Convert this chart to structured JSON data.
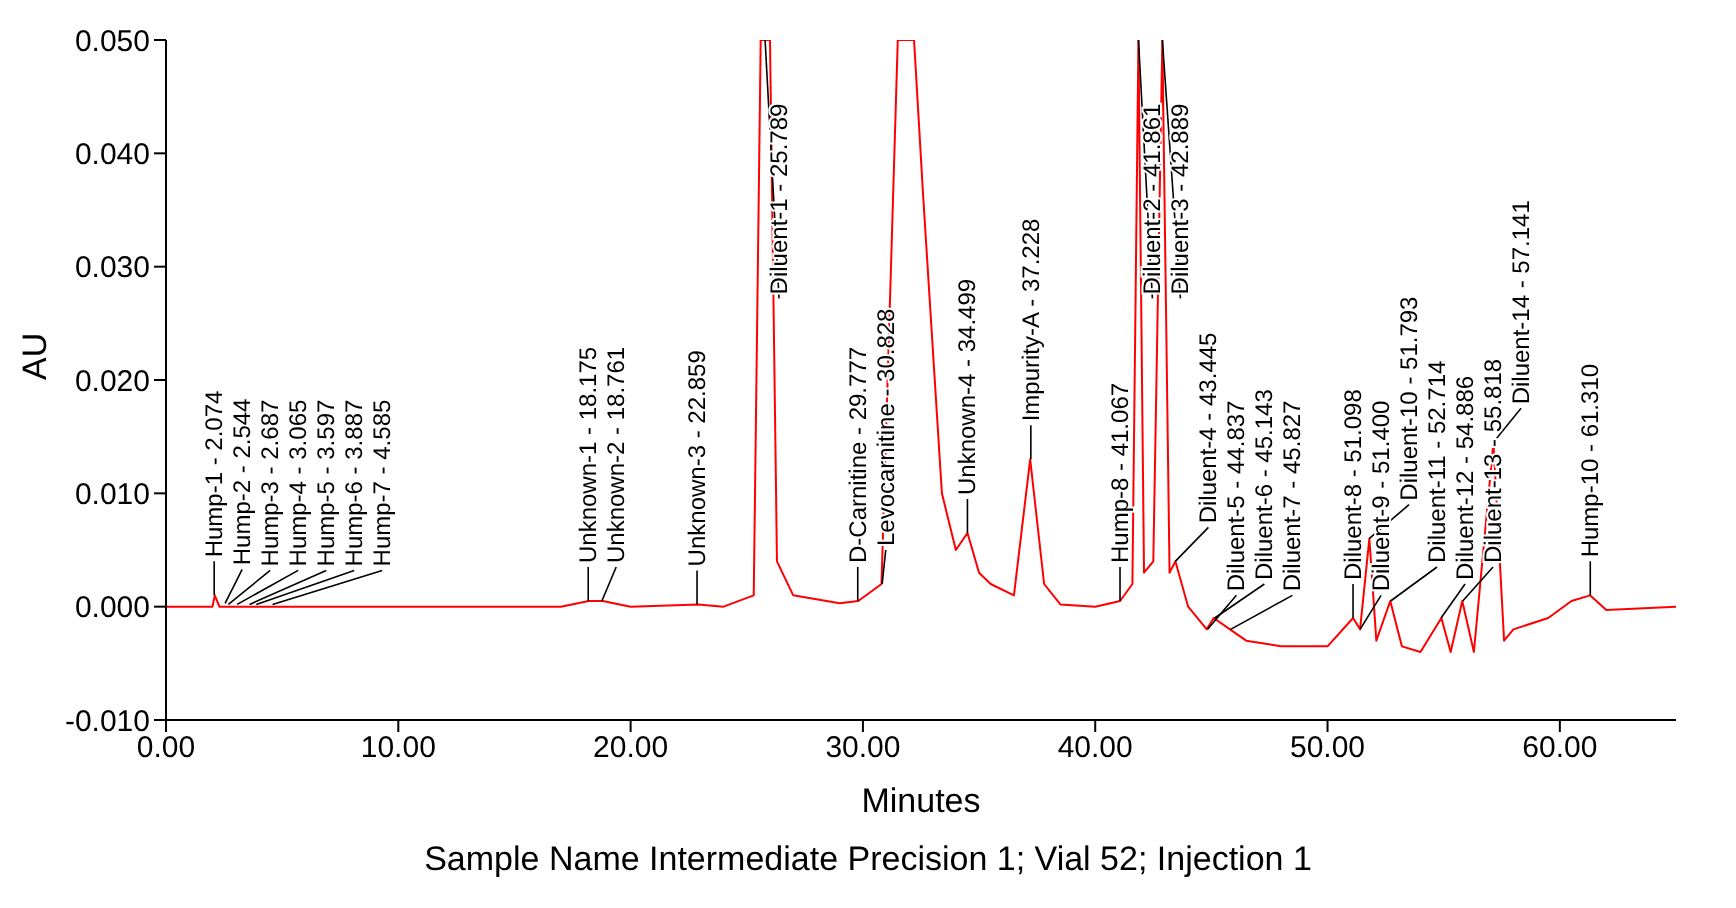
{
  "chart_data": {
    "type": "line",
    "xlabel": "Minutes",
    "ylabel": "AU",
    "xlim": [
      0,
      65
    ],
    "xticks": [
      {
        "value": 0,
        "label": "0.00"
      },
      {
        "value": 10,
        "label": "10.00"
      },
      {
        "value": 20,
        "label": "20.00"
      },
      {
        "value": 30,
        "label": "30.00"
      },
      {
        "value": 40,
        "label": "40.00"
      },
      {
        "value": 50,
        "label": "50.00"
      },
      {
        "value": 60,
        "label": "60.00"
      }
    ],
    "ylim": [
      -0.01,
      0.05
    ],
    "yticks": [
      {
        "value": -0.01,
        "label": "-0.010"
      },
      {
        "value": 0,
        "label": "0.000"
      },
      {
        "value": 0.01,
        "label": "0.010"
      },
      {
        "value": 0.02,
        "label": "0.020"
      },
      {
        "value": 0.03,
        "label": "0.030"
      },
      {
        "value": 0.04,
        "label": "0.040"
      },
      {
        "value": 0.05,
        "label": "0.050"
      }
    ],
    "marker": "none",
    "line_style": "solid",
    "x": [
      0,
      2,
      2.1,
      2.3,
      5,
      10,
      17,
      18.2,
      18.8,
      20,
      22.9,
      24,
      25.3,
      25.6,
      26,
      26.3,
      27,
      29,
      29.8,
      30.8,
      31.5,
      31.8,
      32.2,
      32.6,
      33.4,
      34,
      34.5,
      35,
      35.5,
      36.5,
      37.2,
      37.8,
      38.5,
      40,
      41.07,
      41.6,
      41.86,
      42.1,
      42.5,
      42.89,
      43.2,
      43.45,
      44,
      44.8,
      45.1,
      45.8,
      46.5,
      48,
      50,
      51.1,
      51.4,
      51.8,
      52.1,
      52.7,
      53.2,
      54,
      54.9,
      55.3,
      55.8,
      56.3,
      57.14,
      57.6,
      58,
      59.5,
      60.5,
      61.3,
      62,
      65
    ],
    "series": [
      {
        "color": "#ff0000",
        "values": [
          0,
          0,
          0.001,
          0,
          0,
          0,
          0,
          0.0005,
          0.0005,
          0,
          0.0002,
          0,
          0.001,
          0.05,
          0.05,
          0.004,
          0.001,
          0.0003,
          0.0005,
          0.002,
          0.05,
          0.05,
          0.05,
          0.036,
          0.01,
          0.005,
          0.0065,
          0.003,
          0.002,
          0.001,
          0.013,
          0.002,
          0.0002,
          0,
          0.0005,
          0.002,
          0.05,
          0.003,
          0.004,
          0.05,
          0.003,
          0.004,
          0,
          -0.002,
          -0.001,
          -0.002,
          -0.003,
          -0.0035,
          -0.0035,
          -0.001,
          -0.002,
          0.006,
          -0.003,
          0.0005,
          -0.0035,
          -0.004,
          -0.001,
          -0.004,
          0.0005,
          -0.004,
          0.0145,
          -0.003,
          -0.002,
          -0.001,
          0.0005,
          0.001,
          -0.0003,
          0
        ]
      }
    ],
    "annotations": [
      {
        "text": "Hump-1 - 2.074",
        "x": 2.074,
        "y": 0.001
      },
      {
        "text": "Hump-2 - 2.544",
        "x": 2.544,
        "y": 0.0003
      },
      {
        "text": "Hump-3 - 2.687",
        "x": 2.687,
        "y": 0.0002
      },
      {
        "text": "Hump-4 - 3.065",
        "x": 3.065,
        "y": 0.0002
      },
      {
        "text": "Hump-5 - 3.597",
        "x": 3.597,
        "y": 0.0002
      },
      {
        "text": "Hump-6 - 3.887",
        "x": 3.887,
        "y": 0.0002
      },
      {
        "text": "Hump-7 - 4.585",
        "x": 4.585,
        "y": 0.0002
      },
      {
        "text": "Unknown-1 - 18.175",
        "x": 18.175,
        "y": 0.0005
      },
      {
        "text": "Unknown-2 - 18.761",
        "x": 18.761,
        "y": 0.0005
      },
      {
        "text": "Unknown-3 - 22.859",
        "x": 22.859,
        "y": 0.0002
      },
      {
        "text": "Diluent-1 - 25.789",
        "x": 25.789,
        "y": 0.05
      },
      {
        "text": "D-Carnitine - 29.777",
        "x": 29.777,
        "y": 0.0005
      },
      {
        "text": "Levocarnitine - 30.828",
        "x": 30.828,
        "y": 0.002
      },
      {
        "text": "Unknown-4 - 34.499",
        "x": 34.499,
        "y": 0.0065
      },
      {
        "text": "Impurity-A - 37.228",
        "x": 37.228,
        "y": 0.013
      },
      {
        "text": "Hump-8 - 41.067",
        "x": 41.067,
        "y": 0.0005
      },
      {
        "text": "Diluent-2 - 41.861",
        "x": 41.861,
        "y": 0.05
      },
      {
        "text": "Diluent-3 - 42.889",
        "x": 42.889,
        "y": 0.05
      },
      {
        "text": "Diluent-4 - 43.445",
        "x": 43.445,
        "y": 0.004
      },
      {
        "text": "Diluent-5 - 44.837",
        "x": 44.837,
        "y": -0.002
      },
      {
        "text": "Diluent-6 - 45.143",
        "x": 45.143,
        "y": -0.001
      },
      {
        "text": "Diluent-7 - 45.827",
        "x": 45.827,
        "y": -0.002
      },
      {
        "text": "Diluent-8 - 51.098",
        "x": 51.098,
        "y": -0.001
      },
      {
        "text": "Diluent-9 - 51.400",
        "x": 51.4,
        "y": -0.002
      },
      {
        "text": "Diluent-10 - 51.793",
        "x": 51.793,
        "y": 0.006
      },
      {
        "text": "Diluent-11 - 52.714",
        "x": 52.714,
        "y": 0.0005
      },
      {
        "text": "Diluent-12 - 54.886",
        "x": 54.886,
        "y": -0.001
      },
      {
        "text": "Diluent-13 - 55.818",
        "x": 55.818,
        "y": 0.0005
      },
      {
        "text": "Diluent-14 - 57.141",
        "x": 57.141,
        "y": 0.0145
      },
      {
        "text": "Hump-10 - 61.310",
        "x": 61.31,
        "y": 0.001
      },
      "Sample Name Intermediate Precision 1; Vial 52; Injection 1"
    ]
  }
}
